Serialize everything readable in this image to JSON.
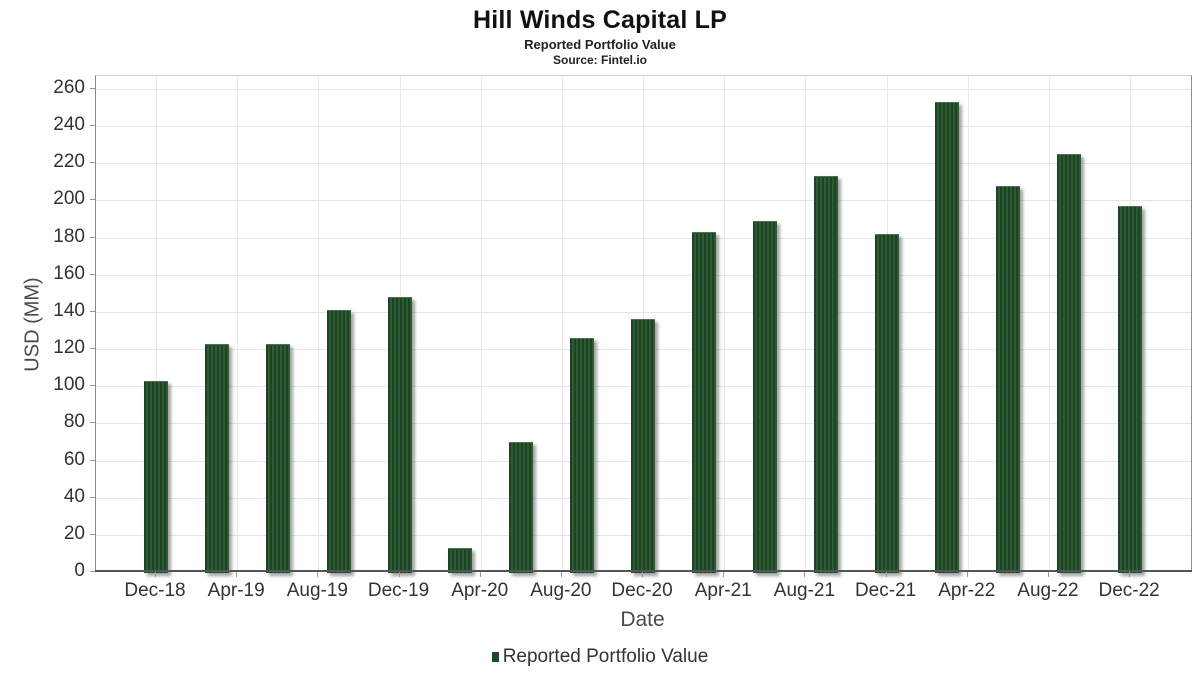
{
  "header": {
    "title": "Hill Winds Capital LP",
    "subtitle": "Reported Portfolio Value",
    "source": "Source: Fintel.io"
  },
  "chart_data": {
    "type": "bar",
    "title": "Hill Winds Capital LP",
    "subtitle": "Reported Portfolio Value",
    "source": "Source: Fintel.io",
    "xlabel": "Date",
    "ylabel": "USD (MM)",
    "ylim": [
      0,
      260
    ],
    "y_tick_step": 20,
    "y_ticks": [
      0,
      20,
      40,
      60,
      80,
      100,
      120,
      140,
      160,
      180,
      200,
      220,
      240,
      260
    ],
    "grid": "on",
    "legend_position": "bottom-center",
    "bar_color": "#1d4a24",
    "x_tick_labels": [
      "Dec-18",
      "Apr-19",
      "Aug-19",
      "Dec-19",
      "Apr-20",
      "Aug-20",
      "Dec-20",
      "Apr-21",
      "Aug-21",
      "Dec-21",
      "Apr-22",
      "Aug-22",
      "Dec-22"
    ],
    "series": [
      {
        "name": "Reported Portfolio Value",
        "color": "#1d4a24",
        "points": [
          {
            "date": "Dec-18",
            "value": 103
          },
          {
            "date": "Mar-19",
            "value": 123
          },
          {
            "date": "Jun-19",
            "value": 123
          },
          {
            "date": "Sep-19",
            "value": 141
          },
          {
            "date": "Dec-19",
            "value": 148
          },
          {
            "date": "Mar-20",
            "value": 13
          },
          {
            "date": "Jun-20",
            "value": 70
          },
          {
            "date": "Sep-20",
            "value": 126
          },
          {
            "date": "Dec-20",
            "value": 136
          },
          {
            "date": "Mar-21",
            "value": 183
          },
          {
            "date": "Jun-21",
            "value": 189
          },
          {
            "date": "Sep-21",
            "value": 213
          },
          {
            "date": "Dec-21",
            "value": 182
          },
          {
            "date": "Mar-22",
            "value": 253
          },
          {
            "date": "Jun-22",
            "value": 208
          },
          {
            "date": "Sep-22",
            "value": 225
          },
          {
            "date": "Dec-22",
            "value": 197
          }
        ]
      }
    ]
  },
  "legend": {
    "items": [
      {
        "label": "Reported Portfolio Value",
        "color": "#1d4a24"
      }
    ]
  }
}
